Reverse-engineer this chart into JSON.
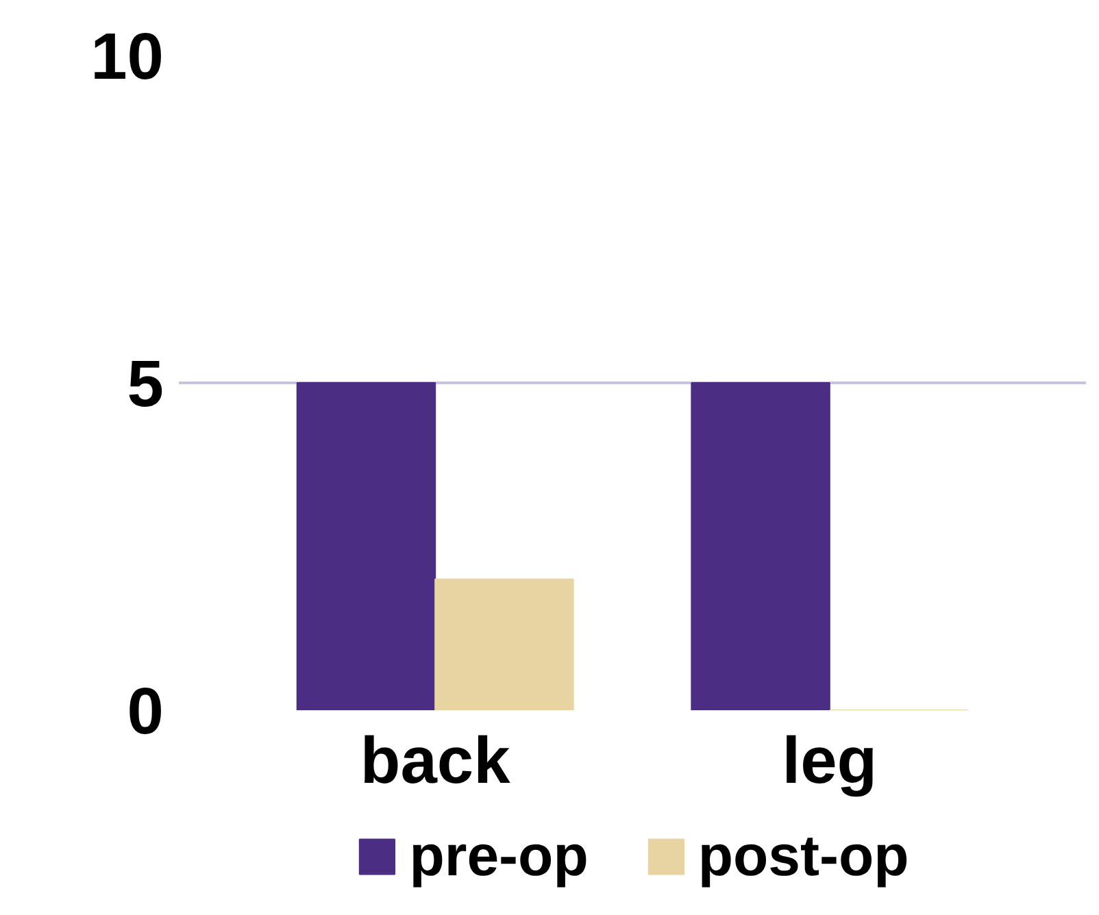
{
  "chart_data": {
    "type": "bar",
    "categories": [
      "back",
      "leg"
    ],
    "series": [
      {
        "name": "pre-op",
        "color": "#4b2e83",
        "values": [
          5,
          5
        ]
      },
      {
        "name": "post-op",
        "color": "#e8d3a2",
        "values": [
          2,
          0
        ]
      }
    ],
    "ylim": [
      0,
      10
    ],
    "yticks": [
      0,
      5,
      10
    ],
    "grid": "y",
    "legend": "bottom"
  }
}
